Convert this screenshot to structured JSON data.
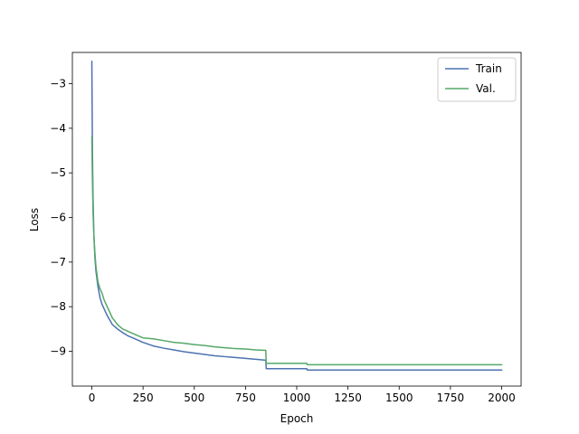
{
  "chart_data": {
    "type": "line",
    "title": "",
    "xlabel": "Epoch",
    "ylabel": "Loss",
    "xlim": [
      -95,
      2095
    ],
    "ylim": [
      -9.78,
      -2.3
    ],
    "xticks": [
      0,
      250,
      500,
      750,
      1000,
      1250,
      1500,
      1750,
      2000
    ],
    "xtick_labels": [
      "0",
      "250",
      "500",
      "750",
      "1000",
      "1250",
      "1500",
      "1750",
      "2000"
    ],
    "yticks": [
      -9,
      -8,
      -7,
      -6,
      -5,
      -4,
      -3
    ],
    "ytick_labels": [
      "−9",
      "−8",
      "−7",
      "−6",
      "−5",
      "−4",
      "−3"
    ],
    "grid": false,
    "legend_position": "upper right",
    "series": [
      {
        "name": "Train",
        "color": "#4c72b0",
        "x": [
          0,
          3,
          6,
          10,
          15,
          20,
          30,
          40,
          50,
          60,
          75,
          100,
          125,
          150,
          175,
          200,
          225,
          250,
          300,
          350,
          400,
          450,
          500,
          550,
          600,
          650,
          700,
          750,
          800,
          849,
          851,
          900,
          950,
          1000,
          1049,
          1051,
          1100,
          1200,
          1300,
          1400,
          1500,
          1600,
          1700,
          1800,
          1900,
          2000
        ],
        "y": [
          -2.5,
          -4.6,
          -5.6,
          -6.4,
          -6.9,
          -7.2,
          -7.55,
          -7.8,
          -7.95,
          -8.05,
          -8.2,
          -8.4,
          -8.5,
          -8.58,
          -8.65,
          -8.7,
          -8.75,
          -8.8,
          -8.88,
          -8.93,
          -8.97,
          -9.01,
          -9.04,
          -9.07,
          -9.1,
          -9.12,
          -9.14,
          -9.16,
          -9.18,
          -9.2,
          -9.39,
          -9.39,
          -9.39,
          -9.39,
          -9.39,
          -9.42,
          -9.42,
          -9.42,
          -9.42,
          -9.42,
          -9.42,
          -9.42,
          -9.42,
          -9.42,
          -9.42,
          -9.42
        ]
      },
      {
        "name": "Val.",
        "color": "#55a868",
        "x": [
          0,
          3,
          6,
          10,
          15,
          20,
          30,
          40,
          50,
          60,
          75,
          100,
          125,
          150,
          175,
          200,
          225,
          250,
          300,
          350,
          400,
          450,
          500,
          550,
          600,
          650,
          700,
          750,
          800,
          849,
          851,
          900,
          950,
          1000,
          1049,
          1051,
          1100,
          1200,
          1300,
          1400,
          1500,
          1600,
          1700,
          1800,
          1900,
          2000
        ],
        "y": [
          -4.2,
          -5.2,
          -5.9,
          -6.4,
          -6.8,
          -7.1,
          -7.45,
          -7.6,
          -7.7,
          -7.85,
          -8.0,
          -8.25,
          -8.4,
          -8.5,
          -8.55,
          -8.6,
          -8.65,
          -8.7,
          -8.72,
          -8.76,
          -8.8,
          -8.82,
          -8.85,
          -8.87,
          -8.9,
          -8.92,
          -8.94,
          -8.95,
          -8.97,
          -8.98,
          -9.27,
          -9.27,
          -9.27,
          -9.27,
          -9.27,
          -9.3,
          -9.3,
          -9.3,
          -9.3,
          -9.3,
          -9.3,
          -9.3,
          -9.3,
          -9.3,
          -9.3,
          -9.3
        ]
      }
    ]
  }
}
